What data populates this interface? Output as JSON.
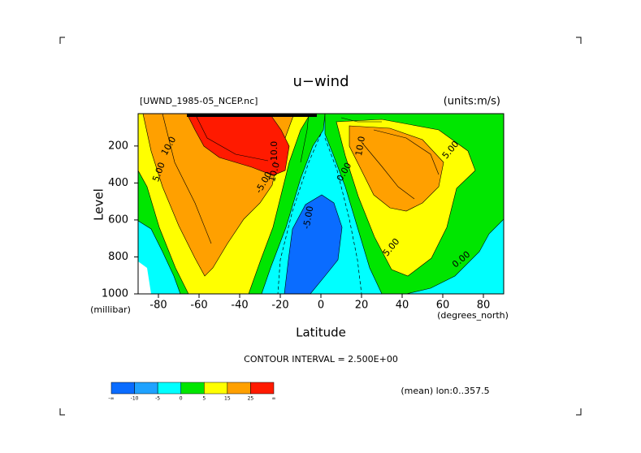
{
  "chart_data": {
    "type": "contour",
    "title": "u−wind",
    "file_label": "[UWND_1985-05_NCEP.nc]",
    "units_label": "(units:m/s)",
    "y_label": "Level",
    "y_units": "(millibar)",
    "x_label": "Latitude",
    "x_units": "(degrees_north)",
    "contour_interval": "CONTOUR INTERVAL = 2.500E+00",
    "mean_label": "(mean) lon:0..357.5",
    "xlim": [
      -90,
      90
    ],
    "xticks": [
      -80,
      -60,
      -40,
      -20,
      0,
      20,
      40,
      60,
      80
    ],
    "ylim": [
      1000,
      25
    ],
    "yticks": [
      200,
      400,
      600,
      800,
      1000
    ],
    "colorbar": {
      "colors": [
        "#0a6cff",
        "#1fa2ff",
        "#00ffff",
        "#00e600",
        "#ffff00",
        "#ffa000",
        "#ff1a00"
      ],
      "labels": [
        "-∞",
        "-10",
        "-5",
        "0",
        "5",
        "15",
        "25",
        "∞"
      ]
    },
    "contour_labels": [
      "10.0",
      "5.00",
      "-10.0",
      "10.0",
      "-5.00",
      "10.0",
      "5.00",
      "0.00",
      "5.00",
      "0.00",
      "-5.00"
    ]
  }
}
